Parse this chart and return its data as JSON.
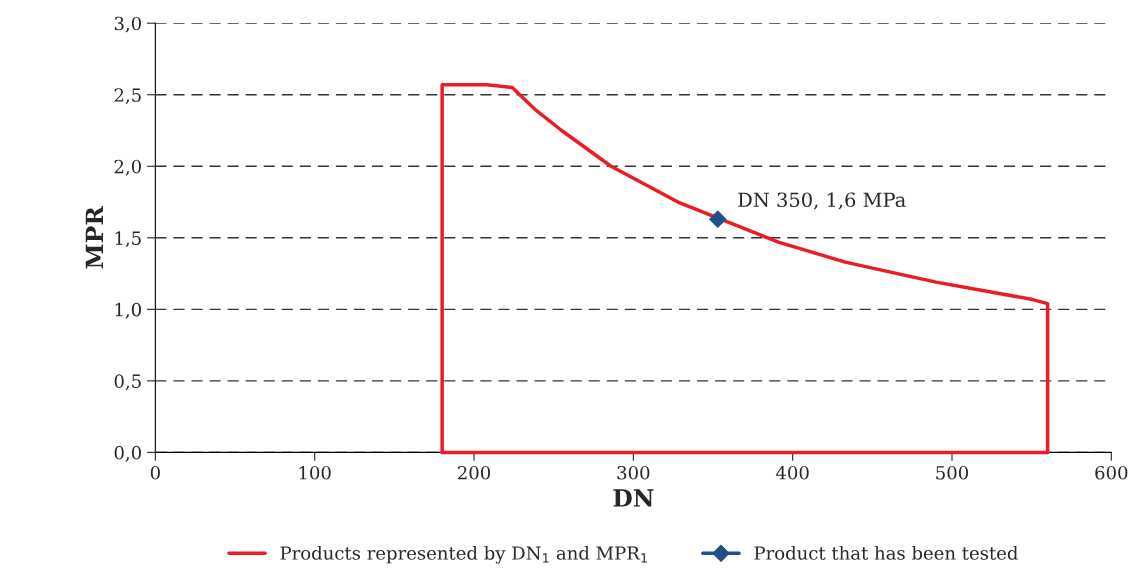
{
  "chart_data": {
    "type": "line",
    "xlabel": "DN",
    "ylabel": "MPR",
    "xlim": [
      0,
      600
    ],
    "xticks": [
      0,
      100,
      200,
      300,
      400,
      500,
      600
    ],
    "ylim": [
      0,
      3
    ],
    "yticks": [
      {
        "value": 0,
        "label": "0,0"
      },
      {
        "value": 0.5,
        "label": "0,5"
      },
      {
        "value": 1,
        "label": "1,0"
      },
      {
        "value": 1.5,
        "label": "1,5"
      },
      {
        "value": 2,
        "label": "2,0"
      },
      {
        "value": 2.5,
        "label": "2,5"
      },
      {
        "value": 3,
        "label": "3,0"
      }
    ],
    "grid": "y",
    "legend": "bottom",
    "line_style": "solid",
    "series": [
      {
        "name": "Products represented by DN$_{1}$ and MPR$_{1}$",
        "color": "#ed1c24",
        "marker": "none",
        "x": [
          180,
          180,
          208,
          224,
          239,
          255,
          286,
          328,
          391,
          433,
          490,
          550,
          560,
          560
        ],
        "values": [
          0,
          2.57,
          2.57,
          2.55,
          2.39,
          2.25,
          2.0,
          1.75,
          1.47,
          1.33,
          1.19,
          1.07,
          1.04,
          0
        ]
      },
      {
        "color": "#ed1c24",
        "marker": "none",
        "x": [
          180,
          560
        ],
        "values": [
          0,
          0
        ]
      },
      {
        "name": "Product that has been tested",
        "color": "#1f4e8c",
        "marker": "diamond",
        "x": [
          353
        ],
        "values": [
          1.63
        ]
      }
    ],
    "annotations": [
      {
        "text": "DN 350, 1,6 MPa",
        "x": 353,
        "y": 1.63
      }
    ]
  }
}
